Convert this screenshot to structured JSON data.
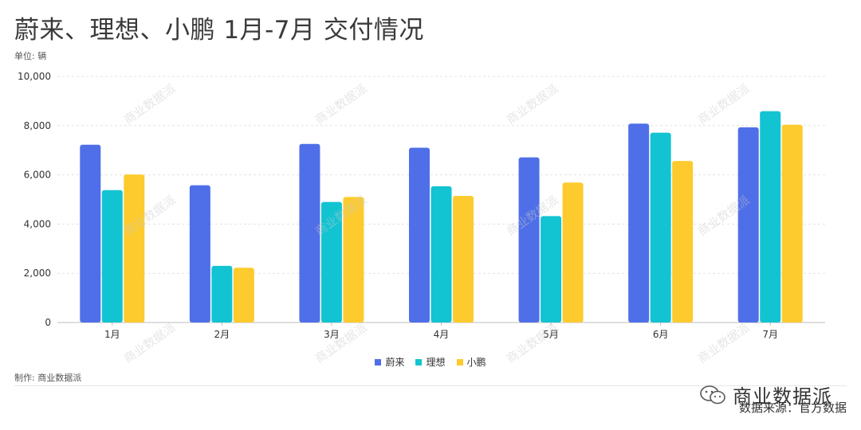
{
  "header": {
    "title": "蔚来、理想、小鹏 1月-7月 交付情况",
    "unit": "单位: 辆"
  },
  "footer": {
    "maker": "制作: 商业数据派",
    "brand_name": "商业数据派",
    "source": "数据来源：官方数据"
  },
  "watermark_text": "商业数据派",
  "colors": {
    "蔚来": "#4F6FE8",
    "理想": "#12C4D2",
    "小鹏": "#FDCB2E",
    "grid": "#e3e3e3",
    "axis": "#bdbdbd"
  },
  "icons": [
    "wechat-icon"
  ],
  "chart_data": {
    "type": "bar",
    "categories": [
      "1月",
      "2月",
      "3月",
      "4月",
      "5月",
      "6月",
      "7月"
    ],
    "series": [
      {
        "name": "蔚来",
        "values": [
          7225,
          5578,
          7257,
          7102,
          6711,
          8083,
          7931
        ]
      },
      {
        "name": "理想",
        "values": [
          5379,
          2300,
          4900,
          5539,
          4323,
          7713,
          8589
        ]
      },
      {
        "name": "小鹏",
        "values": [
          6015,
          2223,
          5102,
          5147,
          5686,
          6565,
          8040
        ]
      }
    ],
    "yticks": [
      "0",
      "2,000",
      "4,000",
      "6,000",
      "8,000",
      "10,000"
    ],
    "ylim": [
      0,
      10000
    ],
    "grid": true,
    "legend_position": "bottom-center"
  }
}
